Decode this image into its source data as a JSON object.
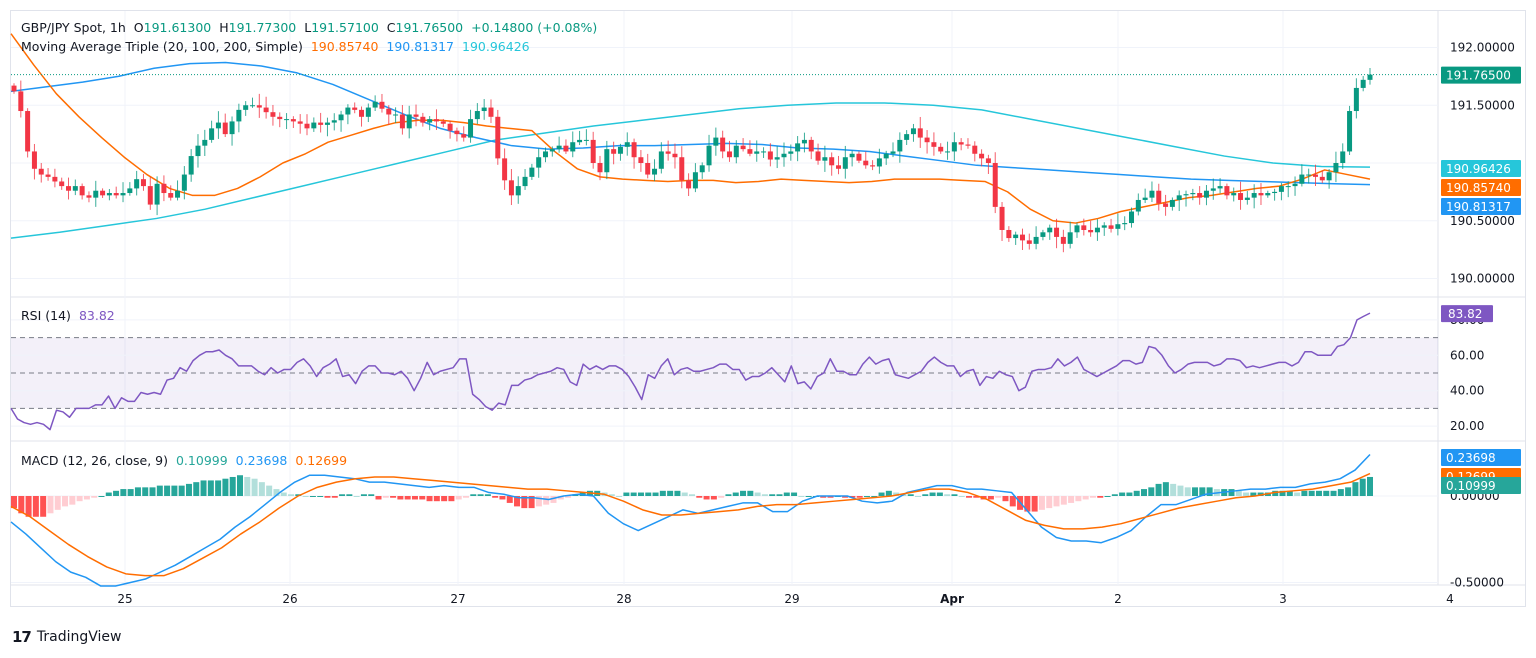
{
  "header": {
    "symbol": "GBP/JPY Spot, 1h",
    "open_label": "O",
    "open": "191.61300",
    "high_label": "H",
    "high": "191.77300",
    "low_label": "L",
    "low": "191.57100",
    "close_label": "C",
    "close": "191.76500",
    "change": "+0.14800 (+0.08%)"
  },
  "ma_legend": {
    "title": "Moving Average Triple (20, 100, 200, Simple)",
    "ma20": "190.85740",
    "ma100": "190.81317",
    "ma200": "190.96426"
  },
  "rsi_legend": {
    "title": "RSI (14)",
    "value": "83.82"
  },
  "macd_legend": {
    "title": "MACD (12, 26, close, 9)",
    "hist": "0.10999",
    "macd": "0.23698",
    "signal": "0.12699"
  },
  "footer": {
    "logo": "17",
    "brand": "TradingView"
  },
  "colors": {
    "up": "#089981",
    "down": "#f23645",
    "ma20": "#ff6d00",
    "ma100": "#2196f3",
    "ma200": "#26c6da",
    "rsi": "#7e57c2",
    "macd": "#2196f3",
    "signal": "#ff6d00",
    "hist_up_strong": "#26a69a",
    "hist_up_weak": "#b2dfdb",
    "hist_down_strong": "#ff5252",
    "hist_down_weak": "#ffcdd2"
  },
  "chart_data": [
    {
      "type": "candlestick",
      "title": "GBP/JPY Spot, 1h",
      "x_ticks": [
        "25",
        "26",
        "27",
        "28",
        "29",
        "Apr",
        "2",
        "3",
        "4"
      ],
      "y_ticks": [
        "192.00000",
        "191.50000",
        "190.50000",
        "190.00000"
      ],
      "ylim": [
        189.85,
        192.3
      ],
      "last_price": 191.765,
      "closes": [
        191.62,
        191.45,
        191.1,
        190.95,
        190.9,
        190.88,
        190.84,
        190.8,
        190.76,
        190.8,
        190.72,
        190.7,
        190.76,
        190.72,
        190.74,
        190.72,
        190.74,
        190.78,
        190.86,
        190.8,
        190.64,
        190.82,
        190.74,
        190.7,
        190.76,
        190.9,
        191.06,
        191.15,
        191.2,
        191.3,
        191.35,
        191.25,
        191.36,
        191.46,
        191.5,
        191.5,
        191.48,
        191.44,
        191.4,
        191.38,
        191.38,
        191.36,
        191.34,
        191.3,
        191.35,
        191.33,
        191.35,
        191.37,
        191.42,
        191.48,
        191.46,
        191.4,
        191.48,
        191.53,
        191.47,
        191.42,
        191.42,
        191.3,
        191.42,
        191.4,
        191.35,
        191.38,
        191.36,
        191.34,
        191.28,
        191.25,
        191.22,
        191.38,
        191.45,
        191.48,
        191.4,
        191.04,
        190.85,
        190.72,
        190.8,
        190.88,
        190.96,
        191.05,
        191.1,
        191.12,
        191.15,
        191.1,
        191.18,
        191.2,
        191.2,
        191.0,
        190.92,
        191.12,
        191.08,
        191.14,
        191.18,
        191.05,
        191.0,
        190.9,
        190.95,
        191.1,
        191.08,
        191.05,
        190.85,
        190.78,
        190.92,
        190.98,
        191.15,
        191.22,
        191.1,
        191.05,
        191.15,
        191.12,
        191.08,
        191.1,
        191.1,
        191.03,
        191.05,
        191.08,
        191.1,
        191.17,
        191.2,
        191.1,
        191.02,
        191.05,
        190.98,
        190.95,
        191.05,
        191.08,
        191.02,
        190.98,
        190.97,
        191.04,
        191.08,
        191.1,
        191.2,
        191.25,
        191.3,
        191.22,
        191.18,
        191.14,
        191.1,
        191.1,
        191.18,
        191.16,
        191.15,
        191.08,
        191.04,
        191.0,
        190.62,
        190.42,
        190.35,
        190.38,
        190.33,
        190.3,
        190.36,
        190.4,
        190.44,
        190.36,
        190.3,
        190.4,
        190.46,
        190.42,
        190.4,
        190.44,
        190.46,
        190.43,
        190.47,
        190.48,
        190.58,
        190.68,
        190.7,
        190.76,
        190.65,
        190.62,
        190.68,
        190.72,
        190.73,
        190.74,
        190.7,
        190.76,
        190.78,
        190.8,
        190.72,
        190.74,
        190.68,
        190.7,
        190.74,
        190.72,
        190.74,
        190.75,
        190.8,
        190.8,
        190.82,
        190.9,
        190.9,
        190.88,
        190.85,
        190.92,
        191.0,
        191.1,
        191.45,
        191.65,
        191.72,
        191.765
      ],
      "ma20": [
        192.12,
        191.85,
        191.6,
        191.4,
        191.22,
        191.05,
        190.9,
        190.78,
        190.72,
        190.72,
        190.78,
        190.88,
        191.0,
        191.08,
        191.18,
        191.24,
        191.3,
        191.35,
        191.37,
        191.37,
        191.35,
        191.32,
        191.3,
        191.28,
        191.1,
        190.95,
        190.88,
        190.86,
        190.85,
        190.84,
        190.85,
        190.85,
        190.83,
        190.84,
        190.86,
        190.85,
        190.84,
        190.83,
        190.84,
        190.86,
        190.86,
        190.86,
        190.85,
        190.84,
        190.75,
        190.6,
        190.5,
        190.48,
        190.52,
        190.58,
        190.62,
        190.66,
        190.7,
        190.72,
        190.75,
        190.78,
        190.8,
        190.86,
        190.94,
        190.9,
        190.86
      ],
      "ma100": [
        191.62,
        191.66,
        191.7,
        191.75,
        191.82,
        191.86,
        191.87,
        191.84,
        191.78,
        191.68,
        191.55,
        191.42,
        191.3,
        191.22,
        191.15,
        191.12,
        191.13,
        191.15,
        191.15,
        191.16,
        191.17,
        191.16,
        191.13,
        191.12,
        191.1,
        191.06,
        191.02,
        190.98,
        190.96,
        190.94,
        190.92,
        190.9,
        190.88,
        190.86,
        190.85,
        190.84,
        190.83,
        190.82,
        190.813
      ],
      "ma200": [
        190.35,
        190.4,
        190.46,
        190.52,
        190.6,
        190.7,
        190.8,
        190.9,
        191.0,
        191.1,
        191.2,
        191.26,
        191.32,
        191.37,
        191.42,
        191.47,
        191.5,
        191.52,
        191.52,
        191.5,
        191.46,
        191.38,
        191.3,
        191.22,
        191.14,
        191.06,
        191.0,
        190.97,
        190.964
      ]
    },
    {
      "type": "line",
      "title": "RSI (14)",
      "y_ticks": [
        "80.00",
        "60.00",
        "40.00",
        "20.00"
      ],
      "bands": [
        30,
        50,
        70
      ],
      "ylim": [
        12,
        90
      ],
      "values": [
        30,
        24,
        22,
        21,
        22,
        21,
        18,
        29,
        28,
        25,
        30,
        30,
        30,
        32,
        32,
        37,
        30,
        36,
        34,
        34,
        39,
        38,
        39,
        38,
        46,
        47,
        53,
        51,
        57,
        60,
        62,
        62,
        63,
        60,
        58,
        54,
        54,
        54,
        51,
        49,
        53,
        50,
        52,
        52,
        56,
        58,
        54,
        48,
        53,
        55,
        58,
        48,
        49,
        44,
        51,
        54,
        54,
        50,
        50,
        49,
        51,
        47,
        40,
        47,
        56,
        49,
        51,
        52,
        53,
        58,
        58,
        38,
        35,
        31,
        29,
        33,
        32,
        43,
        43,
        46,
        47,
        49,
        50,
        51,
        53,
        52,
        45,
        43,
        55,
        52,
        54,
        52,
        54,
        54,
        52,
        48,
        42,
        35,
        49,
        47,
        54,
        58,
        49,
        52,
        53,
        51,
        51,
        52,
        53,
        55,
        55,
        52,
        52,
        46,
        48,
        48,
        50,
        53,
        49,
        45,
        54,
        44,
        45,
        41,
        48,
        50,
        58,
        51,
        51,
        49,
        49,
        55,
        59,
        55,
        57,
        58,
        49,
        48,
        47,
        49,
        51,
        56,
        59,
        56,
        54,
        54,
        48,
        51,
        52,
        43,
        48,
        47,
        51,
        49,
        48,
        40,
        42,
        51,
        52,
        52,
        53,
        58,
        54,
        56,
        59,
        52,
        50,
        48,
        50,
        52,
        54,
        57,
        57,
        55,
        56,
        65,
        64,
        60,
        54,
        50,
        52,
        55,
        56,
        56,
        56,
        54,
        55,
        58,
        58,
        57,
        53,
        54,
        53,
        54,
        55,
        56,
        56,
        54,
        56,
        62,
        62,
        60,
        60,
        60,
        65,
        66,
        70,
        80,
        82,
        83.82
      ]
    },
    {
      "type": "bar+line",
      "title": "MACD (12, 26, close, 9)",
      "y_ticks": [
        "0.00000",
        "-0.50000"
      ],
      "ylim": [
        -0.6,
        0.32
      ],
      "histogram": [
        -0.07,
        -0.1,
        -0.12,
        -0.12,
        -0.12,
        -0.1,
        -0.08,
        -0.06,
        -0.05,
        -0.03,
        -0.02,
        -0.01,
        0.0,
        0.02,
        0.03,
        0.04,
        0.04,
        0.05,
        0.05,
        0.05,
        0.06,
        0.06,
        0.06,
        0.06,
        0.07,
        0.08,
        0.09,
        0.09,
        0.09,
        0.1,
        0.11,
        0.12,
        0.11,
        0.1,
        0.08,
        0.06,
        0.04,
        0.02,
        0.01,
        0.01,
        0.0,
        0.0,
        0.0,
        -0.01,
        -0.01,
        0.01,
        0.01,
        0.0,
        0.01,
        0.01,
        -0.02,
        -0.01,
        -0.01,
        -0.02,
        -0.02,
        -0.02,
        -0.02,
        -0.03,
        -0.03,
        -0.03,
        -0.03,
        -0.02,
        -0.01,
        0.01,
        0.01,
        0.01,
        -0.01,
        -0.02,
        -0.04,
        -0.06,
        -0.07,
        -0.07,
        -0.06,
        -0.05,
        -0.04,
        -0.02,
        -0.01,
        0.01,
        0.02,
        0.03,
        0.03,
        0.02,
        0.01,
        0.0,
        0.02,
        0.02,
        0.02,
        0.02,
        0.02,
        0.03,
        0.03,
        0.03,
        0.02,
        0.01,
        -0.01,
        -0.02,
        -0.02,
        -0.01,
        0.01,
        0.02,
        0.03,
        0.03,
        0.02,
        0.01,
        0.01,
        0.01,
        0.02,
        0.02,
        0.0,
        0.0,
        0.0,
        -0.01,
        -0.01,
        0.0,
        -0.01,
        -0.01,
        -0.01,
        0.0,
        0.0,
        0.02,
        0.03,
        0.02,
        0.01,
        0.01,
        0.0,
        0.01,
        0.02,
        0.02,
        0.01,
        0.01,
        0.0,
        -0.01,
        -0.01,
        -0.02,
        -0.02,
        -0.01,
        -0.03,
        -0.06,
        -0.08,
        -0.09,
        -0.09,
        -0.08,
        -0.07,
        -0.06,
        -0.05,
        -0.04,
        -0.03,
        -0.02,
        -0.01,
        -0.01,
        0.0,
        0.01,
        0.02,
        0.02,
        0.03,
        0.04,
        0.05,
        0.07,
        0.08,
        0.07,
        0.06,
        0.05,
        0.05,
        0.05,
        0.05,
        0.04,
        0.04,
        0.04,
        0.03,
        0.02,
        0.02,
        0.02,
        0.02,
        0.03,
        0.03,
        0.03,
        0.02,
        0.03,
        0.03,
        0.03,
        0.03,
        0.03,
        0.04,
        0.05,
        0.08,
        0.1,
        0.11
      ],
      "macd": [
        -0.15,
        -0.22,
        -0.3,
        -0.38,
        -0.44,
        -0.47,
        -0.52,
        -0.52,
        -0.5,
        -0.48,
        -0.44,
        -0.4,
        -0.35,
        -0.3,
        -0.25,
        -0.18,
        -0.12,
        -0.05,
        0.02,
        0.08,
        0.12,
        0.12,
        0.11,
        0.1,
        0.08,
        0.08,
        0.07,
        0.06,
        0.05,
        0.06,
        0.05,
        0.05,
        0.02,
        0.01,
        -0.01,
        -0.01,
        -0.02,
        0.0,
        0.01,
        0.0,
        -0.1,
        -0.16,
        -0.2,
        -0.16,
        -0.12,
        -0.08,
        -0.1,
        -0.08,
        -0.06,
        -0.04,
        -0.04,
        -0.09,
        -0.09,
        -0.03,
        0.0,
        0.0,
        0.0,
        -0.03,
        -0.04,
        -0.03,
        0.02,
        0.04,
        0.06,
        0.06,
        0.04,
        0.04,
        0.03,
        0.02,
        -0.08,
        -0.18,
        -0.24,
        -0.26,
        -0.26,
        -0.27,
        -0.24,
        -0.2,
        -0.12,
        -0.05,
        -0.05,
        -0.02,
        0.01,
        0.02,
        0.03,
        0.04,
        0.04,
        0.05,
        0.05,
        0.07,
        0.08,
        0.1,
        0.15,
        0.24
      ],
      "signal": [
        -0.06,
        -0.12,
        -0.2,
        -0.28,
        -0.35,
        -0.41,
        -0.45,
        -0.46,
        -0.46,
        -0.42,
        -0.36,
        -0.3,
        -0.22,
        -0.15,
        -0.07,
        0.0,
        0.05,
        0.08,
        0.1,
        0.11,
        0.11,
        0.1,
        0.09,
        0.08,
        0.07,
        0.06,
        0.05,
        0.04,
        0.04,
        0.03,
        0.02,
        0.01,
        -0.03,
        -0.08,
        -0.11,
        -0.11,
        -0.1,
        -0.09,
        -0.08,
        -0.06,
        -0.05,
        -0.05,
        -0.04,
        -0.03,
        -0.02,
        -0.01,
        0.0,
        0.02,
        0.04,
        0.04,
        0.02,
        -0.02,
        -0.08,
        -0.14,
        -0.17,
        -0.19,
        -0.19,
        -0.18,
        -0.16,
        -0.13,
        -0.1,
        -0.07,
        -0.05,
        -0.03,
        -0.01,
        0.0,
        0.02,
        0.03,
        0.04,
        0.06,
        0.08,
        0.13
      ]
    }
  ]
}
